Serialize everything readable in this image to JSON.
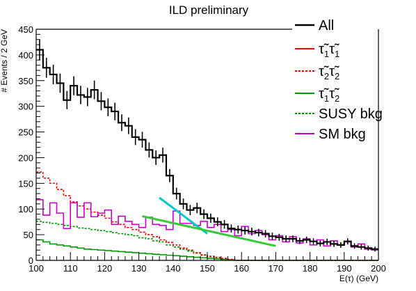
{
  "chart_data": {
    "type": "line",
    "title": "ILD preliminary",
    "xlabel": "E(τ) (GeV)",
    "ylabel": "# Events / 2 GeV",
    "xlim": [
      100,
      200
    ],
    "ylim": [
      0,
      450
    ],
    "xticks": [
      100,
      110,
      120,
      130,
      140,
      150,
      160,
      170,
      180,
      190,
      200
    ],
    "yticks": [
      0,
      50,
      100,
      150,
      200,
      250,
      300,
      350,
      400,
      450
    ],
    "bin_width": 2,
    "bin_edges_start": 100,
    "legend_position": "top-right",
    "series": [
      {
        "name": "All",
        "color": "#000000",
        "style": "solid-errorbars",
        "values": [
          410,
          375,
          362,
          345,
          312,
          340,
          322,
          318,
          332,
          310,
          298,
          290,
          268,
          262,
          240,
          235,
          215,
          200,
          205,
          165,
          130,
          110,
          98,
          102,
          90,
          82,
          75,
          70,
          62,
          60,
          58,
          56,
          54,
          52,
          47,
          45,
          42,
          42,
          38,
          40,
          37,
          33,
          36,
          32,
          30,
          37,
          28,
          26,
          24,
          22
        ]
      },
      {
        "name": "SM bkg",
        "color": "#cc00cc",
        "style": "solid",
        "values": [
          118,
          88,
          112,
          92,
          62,
          112,
          84,
          112,
          85,
          92,
          98,
          70,
          86,
          76,
          70,
          64,
          84,
          70,
          68,
          60,
          96,
          72,
          72,
          68,
          76,
          64,
          70,
          56,
          60,
          48,
          66,
          52,
          58,
          50,
          40,
          48,
          36,
          46,
          34,
          42,
          30,
          40,
          28,
          38,
          30,
          36,
          26,
          32,
          22,
          20
        ]
      },
      {
        "name": "τ̃₂τ̃₂",
        "color": "#ff0000",
        "style": "dashed",
        "values": [
          172,
          160,
          150,
          138,
          126,
          114,
          106,
          100,
          94,
          88,
          82,
          75,
          70,
          64,
          60,
          55,
          50,
          46,
          40,
          35,
          30,
          24,
          20,
          15,
          11,
          8,
          6,
          4,
          2,
          0,
          0,
          0,
          0,
          0,
          0,
          0,
          0,
          0,
          0,
          0,
          0,
          0,
          0,
          0,
          0,
          0,
          0,
          0,
          0,
          0
        ]
      },
      {
        "name": "SUSY bkg",
        "color": "#009900",
        "style": "dashed",
        "values": [
          76,
          74,
          72,
          70,
          68,
          66,
          63,
          62,
          60,
          58,
          56,
          54,
          52,
          50,
          48,
          44,
          42,
          38,
          36,
          30,
          26,
          22,
          18,
          14,
          10,
          7,
          5,
          3,
          2,
          0,
          0,
          0,
          0,
          0,
          0,
          0,
          0,
          0,
          0,
          0,
          0,
          0,
          0,
          0,
          0,
          0,
          0,
          0,
          0,
          0
        ]
      },
      {
        "name": "τ̃₁τ̃₂",
        "color": "#009900",
        "style": "solid",
        "values": [
          40,
          36,
          32,
          30,
          28,
          26,
          24,
          22,
          21,
          20,
          19,
          18,
          17,
          16,
          15,
          14,
          13,
          12,
          11,
          10,
          9,
          8,
          7,
          6,
          5,
          4,
          3,
          2,
          1,
          0,
          0,
          0,
          0,
          0,
          0,
          0,
          0,
          0,
          0,
          0,
          0,
          0,
          0,
          0,
          0,
          0,
          0,
          0,
          0,
          0
        ]
      },
      {
        "name": "τ̃₁τ̃₁",
        "color": "#ff0000",
        "style": "solid",
        "values": []
      }
    ],
    "fits": [
      {
        "name": "fit-cyan",
        "color": "#00cccc",
        "x": [
          136,
          150
        ],
        "y": [
          122,
          52
        ]
      },
      {
        "name": "fit-green",
        "color": "#33cc33",
        "x": [
          131,
          170
        ],
        "y": [
          86,
          28
        ]
      }
    ],
    "legend": [
      {
        "label": "All",
        "color": "#000000",
        "style": "solid"
      },
      {
        "label_main": "τ̃",
        "sub1": "1",
        "label_main2": "τ̃",
        "sub2": "1",
        "color": "#ff0000",
        "style": "solid"
      },
      {
        "label_main": "τ̃",
        "sub1": "2",
        "label_main2": "τ̃",
        "sub2": "2",
        "color": "#ff0000",
        "style": "dashed"
      },
      {
        "label_main": "τ̃",
        "sub1": "1",
        "label_main2": "τ̃",
        "sub2": "2",
        "color": "#009900",
        "style": "solid"
      },
      {
        "label": "SUSY bkg",
        "color": "#009900",
        "style": "dashed"
      },
      {
        "label": "SM bkg",
        "color": "#cc00cc",
        "style": "solid"
      }
    ]
  }
}
